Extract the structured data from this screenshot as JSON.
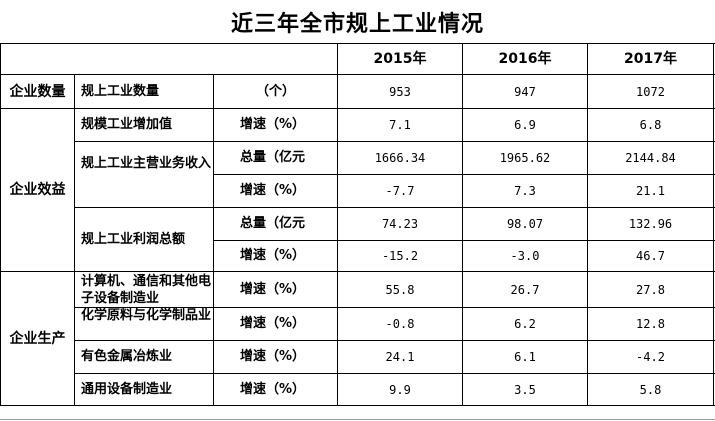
{
  "title": "近三年全市规上工业情况",
  "years": [
    "2015年",
    "2016年",
    "2017年"
  ],
  "rows": [
    {
      "category": "企业数量",
      "item": "规上工业数量",
      "unit": "（个）",
      "values": [
        "953",
        "947",
        "1072"
      ]
    },
    {
      "category": "企业效益",
      "item": "规模工业增加值",
      "unit": "增速（%）",
      "values": [
        "7.1",
        "6.9",
        "6.8"
      ]
    },
    {
      "item": "规上工业主营业务收入",
      "unit": "总量（亿元",
      "values": [
        "1666.34",
        "1965.62",
        "2144.84"
      ]
    },
    {
      "unit": "增速（%）",
      "values": [
        "-7.7",
        "7.3",
        "21.1"
      ]
    },
    {
      "item": "规上工业利润总额",
      "unit": "总量（亿元",
      "values": [
        "74.23",
        "98.07",
        "132.96"
      ]
    },
    {
      "unit": "增速（%）",
      "values": [
        "-15.2",
        "-3.0",
        "46.7"
      ]
    },
    {
      "category": "企业生产",
      "item": "计算机、通信和其他电子设备制造业",
      "unit": "增速（%）",
      "values": [
        "55.8",
        "26.7",
        "27.8"
      ]
    },
    {
      "item": "化学原料与化学制品业",
      "unit": "增速（%）",
      "values": [
        "-0.8",
        "6.2",
        "12.8"
      ]
    },
    {
      "item": "有色金属冶炼业",
      "unit": "增速（%）",
      "values": [
        "24.1",
        "6.1",
        "-4.2"
      ]
    },
    {
      "item": "通用设备制造业",
      "unit": "增速（%）",
      "values": [
        "9.9",
        "3.5",
        "5.8"
      ]
    }
  ]
}
